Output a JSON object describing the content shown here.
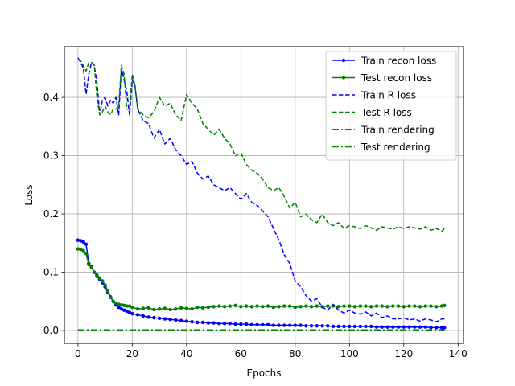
{
  "chart_data": {
    "type": "line",
    "title": "",
    "xlabel": "Epochs",
    "ylabel": "Loss",
    "xlim": [
      -5,
      142
    ],
    "ylim": [
      -0.022,
      0.487
    ],
    "xticks": [
      0,
      20,
      40,
      60,
      80,
      100,
      120,
      140
    ],
    "yticks": [
      0.0,
      0.1,
      0.2,
      0.3,
      0.4
    ],
    "ytick_labels": [
      "0.0",
      "0.1",
      "0.2",
      "0.3",
      "0.4"
    ],
    "grid": true,
    "legend_position": "top-right",
    "series": [
      {
        "name": "Train recon loss",
        "color": "#0000ff",
        "style": "solid-marker",
        "x": [
          0,
          1,
          2,
          3,
          4,
          5,
          6,
          7,
          8,
          9,
          10,
          11,
          12,
          13,
          14,
          15,
          16,
          17,
          18,
          19,
          20,
          22,
          24,
          26,
          28,
          30,
          32,
          34,
          36,
          38,
          40,
          42,
          44,
          46,
          48,
          50,
          52,
          54,
          56,
          58,
          60,
          62,
          64,
          66,
          68,
          70,
          72,
          74,
          76,
          78,
          80,
          82,
          84,
          86,
          88,
          90,
          92,
          94,
          96,
          98,
          100,
          102,
          104,
          106,
          108,
          110,
          112,
          114,
          116,
          118,
          120,
          122,
          124,
          126,
          128,
          130,
          132,
          134,
          135
        ],
        "y": [
          0.155,
          0.154,
          0.152,
          0.148,
          0.115,
          0.11,
          0.1,
          0.093,
          0.088,
          0.082,
          0.075,
          0.065,
          0.057,
          0.05,
          0.044,
          0.04,
          0.037,
          0.035,
          0.033,
          0.031,
          0.029,
          0.027,
          0.025,
          0.023,
          0.022,
          0.021,
          0.02,
          0.019,
          0.018,
          0.017,
          0.016,
          0.015,
          0.014,
          0.014,
          0.013,
          0.013,
          0.012,
          0.012,
          0.012,
          0.011,
          0.011,
          0.011,
          0.01,
          0.01,
          0.01,
          0.01,
          0.009,
          0.009,
          0.009,
          0.009,
          0.009,
          0.009,
          0.008,
          0.008,
          0.008,
          0.008,
          0.008,
          0.007,
          0.007,
          0.007,
          0.007,
          0.007,
          0.007,
          0.007,
          0.007,
          0.006,
          0.006,
          0.006,
          0.006,
          0.006,
          0.006,
          0.006,
          0.006,
          0.006,
          0.006,
          0.005,
          0.005,
          0.005,
          0.005
        ]
      },
      {
        "name": "Test recon loss",
        "color": "#008000",
        "style": "solid-marker",
        "x": [
          0,
          1,
          2,
          3,
          4,
          5,
          6,
          7,
          8,
          9,
          10,
          11,
          12,
          13,
          14,
          15,
          16,
          17,
          18,
          19,
          20,
          22,
          24,
          26,
          28,
          30,
          32,
          34,
          36,
          38,
          40,
          42,
          44,
          46,
          48,
          50,
          52,
          54,
          56,
          58,
          60,
          62,
          64,
          66,
          68,
          70,
          72,
          74,
          76,
          78,
          80,
          82,
          84,
          86,
          88,
          90,
          92,
          94,
          96,
          98,
          100,
          102,
          104,
          106,
          108,
          110,
          112,
          114,
          116,
          118,
          120,
          122,
          124,
          126,
          128,
          130,
          132,
          134,
          135
        ],
        "y": [
          0.14,
          0.139,
          0.137,
          0.132,
          0.113,
          0.108,
          0.1,
          0.095,
          0.09,
          0.085,
          0.078,
          0.068,
          0.058,
          0.05,
          0.047,
          0.045,
          0.044,
          0.043,
          0.042,
          0.042,
          0.04,
          0.037,
          0.038,
          0.039,
          0.036,
          0.037,
          0.038,
          0.036,
          0.037,
          0.039,
          0.038,
          0.037,
          0.04,
          0.039,
          0.04,
          0.041,
          0.042,
          0.041,
          0.042,
          0.043,
          0.041,
          0.042,
          0.041,
          0.042,
          0.041,
          0.042,
          0.04,
          0.041,
          0.042,
          0.042,
          0.04,
          0.041,
          0.042,
          0.041,
          0.042,
          0.041,
          0.042,
          0.042,
          0.041,
          0.042,
          0.042,
          0.041,
          0.042,
          0.042,
          0.041,
          0.042,
          0.042,
          0.041,
          0.042,
          0.042,
          0.041,
          0.042,
          0.042,
          0.041,
          0.042,
          0.042,
          0.041,
          0.042,
          0.043
        ]
      },
      {
        "name": "Train R loss",
        "color": "#0000ff",
        "style": "dashed",
        "x": [
          0,
          1,
          2,
          3,
          4,
          5,
          6,
          7,
          8,
          9,
          10,
          11,
          12,
          13,
          14,
          15,
          16,
          17,
          18,
          19,
          20,
          21,
          22,
          24,
          26,
          28,
          30,
          32,
          34,
          36,
          38,
          40,
          42,
          44,
          46,
          48,
          50,
          52,
          54,
          56,
          58,
          60,
          62,
          64,
          66,
          68,
          70,
          72,
          74,
          76,
          78,
          80,
          82,
          84,
          86,
          88,
          90,
          92,
          94,
          96,
          98,
          100,
          102,
          104,
          106,
          108,
          110,
          112,
          114,
          116,
          118,
          120,
          122,
          124,
          126,
          128,
          130,
          132,
          134,
          135
        ],
        "y": [
          0.468,
          0.46,
          0.45,
          0.405,
          0.44,
          0.46,
          0.455,
          0.425,
          0.37,
          0.395,
          0.4,
          0.385,
          0.395,
          0.39,
          0.4,
          0.37,
          0.45,
          0.43,
          0.41,
          0.37,
          0.43,
          0.42,
          0.38,
          0.36,
          0.355,
          0.33,
          0.345,
          0.32,
          0.33,
          0.31,
          0.3,
          0.285,
          0.29,
          0.27,
          0.26,
          0.265,
          0.25,
          0.245,
          0.24,
          0.245,
          0.235,
          0.225,
          0.235,
          0.22,
          0.215,
          0.205,
          0.195,
          0.175,
          0.155,
          0.13,
          0.115,
          0.085,
          0.075,
          0.06,
          0.05,
          0.055,
          0.04,
          0.035,
          0.045,
          0.035,
          0.03,
          0.035,
          0.03,
          0.028,
          0.032,
          0.025,
          0.03,
          0.022,
          0.025,
          0.02,
          0.02,
          0.022,
          0.018,
          0.02,
          0.016,
          0.02,
          0.018,
          0.015,
          0.02,
          0.02
        ]
      },
      {
        "name": "Test R loss",
        "color": "#008000",
        "style": "dashed",
        "x": [
          0,
          1,
          2,
          3,
          4,
          5,
          6,
          7,
          8,
          9,
          10,
          11,
          12,
          13,
          14,
          15,
          16,
          17,
          18,
          19,
          20,
          21,
          22,
          24,
          26,
          28,
          30,
          32,
          34,
          36,
          38,
          40,
          42,
          44,
          46,
          48,
          50,
          52,
          54,
          56,
          58,
          60,
          62,
          64,
          66,
          68,
          70,
          72,
          74,
          76,
          78,
          80,
          82,
          84,
          86,
          88,
          90,
          92,
          94,
          96,
          98,
          100,
          102,
          104,
          106,
          108,
          110,
          112,
          114,
          116,
          118,
          120,
          122,
          124,
          126,
          128,
          130,
          132,
          134,
          135
        ],
        "y": [
          0.465,
          0.463,
          0.455,
          0.445,
          0.46,
          0.46,
          0.455,
          0.4,
          0.37,
          0.375,
          0.385,
          0.375,
          0.37,
          0.38,
          0.38,
          0.385,
          0.455,
          0.44,
          0.38,
          0.38,
          0.44,
          0.42,
          0.38,
          0.37,
          0.365,
          0.375,
          0.4,
          0.385,
          0.39,
          0.37,
          0.36,
          0.405,
          0.39,
          0.38,
          0.355,
          0.345,
          0.335,
          0.345,
          0.33,
          0.32,
          0.3,
          0.305,
          0.285,
          0.275,
          0.27,
          0.26,
          0.245,
          0.24,
          0.245,
          0.23,
          0.21,
          0.22,
          0.195,
          0.2,
          0.19,
          0.185,
          0.2,
          0.185,
          0.18,
          0.185,
          0.175,
          0.18,
          0.178,
          0.175,
          0.18,
          0.176,
          0.172,
          0.178,
          0.176,
          0.174,
          0.178,
          0.175,
          0.178,
          0.176,
          0.174,
          0.178,
          0.172,
          0.175,
          0.17,
          0.175
        ]
      },
      {
        "name": "Train rendering",
        "color": "#0000ff",
        "style": "dashdot",
        "x": [
          0,
          135
        ],
        "y": [
          0.001,
          0.001
        ]
      },
      {
        "name": "Test rendering",
        "color": "#008000",
        "style": "dashdot",
        "x": [
          0,
          135
        ],
        "y": [
          0.001,
          0.001
        ]
      }
    ]
  }
}
